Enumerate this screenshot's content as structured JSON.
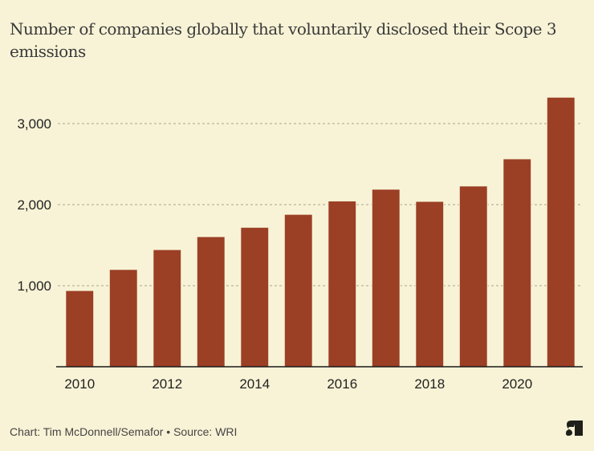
{
  "chart_data": {
    "type": "bar",
    "title": "Number of companies globally that voluntarily disclosed their Scope 3 emissions",
    "categories": [
      "2010",
      "2011",
      "2012",
      "2013",
      "2014",
      "2015",
      "2016",
      "2017",
      "2018",
      "2019",
      "2020",
      "2021"
    ],
    "values": [
      940,
      1200,
      1445,
      1605,
      1720,
      1880,
      2045,
      2190,
      2040,
      2230,
      2565,
      3325
    ],
    "x_tick_labels": [
      "2010",
      "2012",
      "2014",
      "2016",
      "2018",
      "2020"
    ],
    "y_ticks": [
      1000,
      2000,
      3000
    ],
    "y_tick_labels": [
      "1,000",
      "2,000",
      "3,000"
    ],
    "ylim": [
      0,
      3000
    ],
    "xlabel": "",
    "ylabel": "",
    "grid": "horizontal dashed",
    "legend": "none",
    "bar_color": "#9b3f25"
  },
  "footer": {
    "credit": "Chart: Tim McDonnell/Semafor • Source: WRI"
  },
  "logo": {
    "icon": "semafor-logo-icon"
  }
}
